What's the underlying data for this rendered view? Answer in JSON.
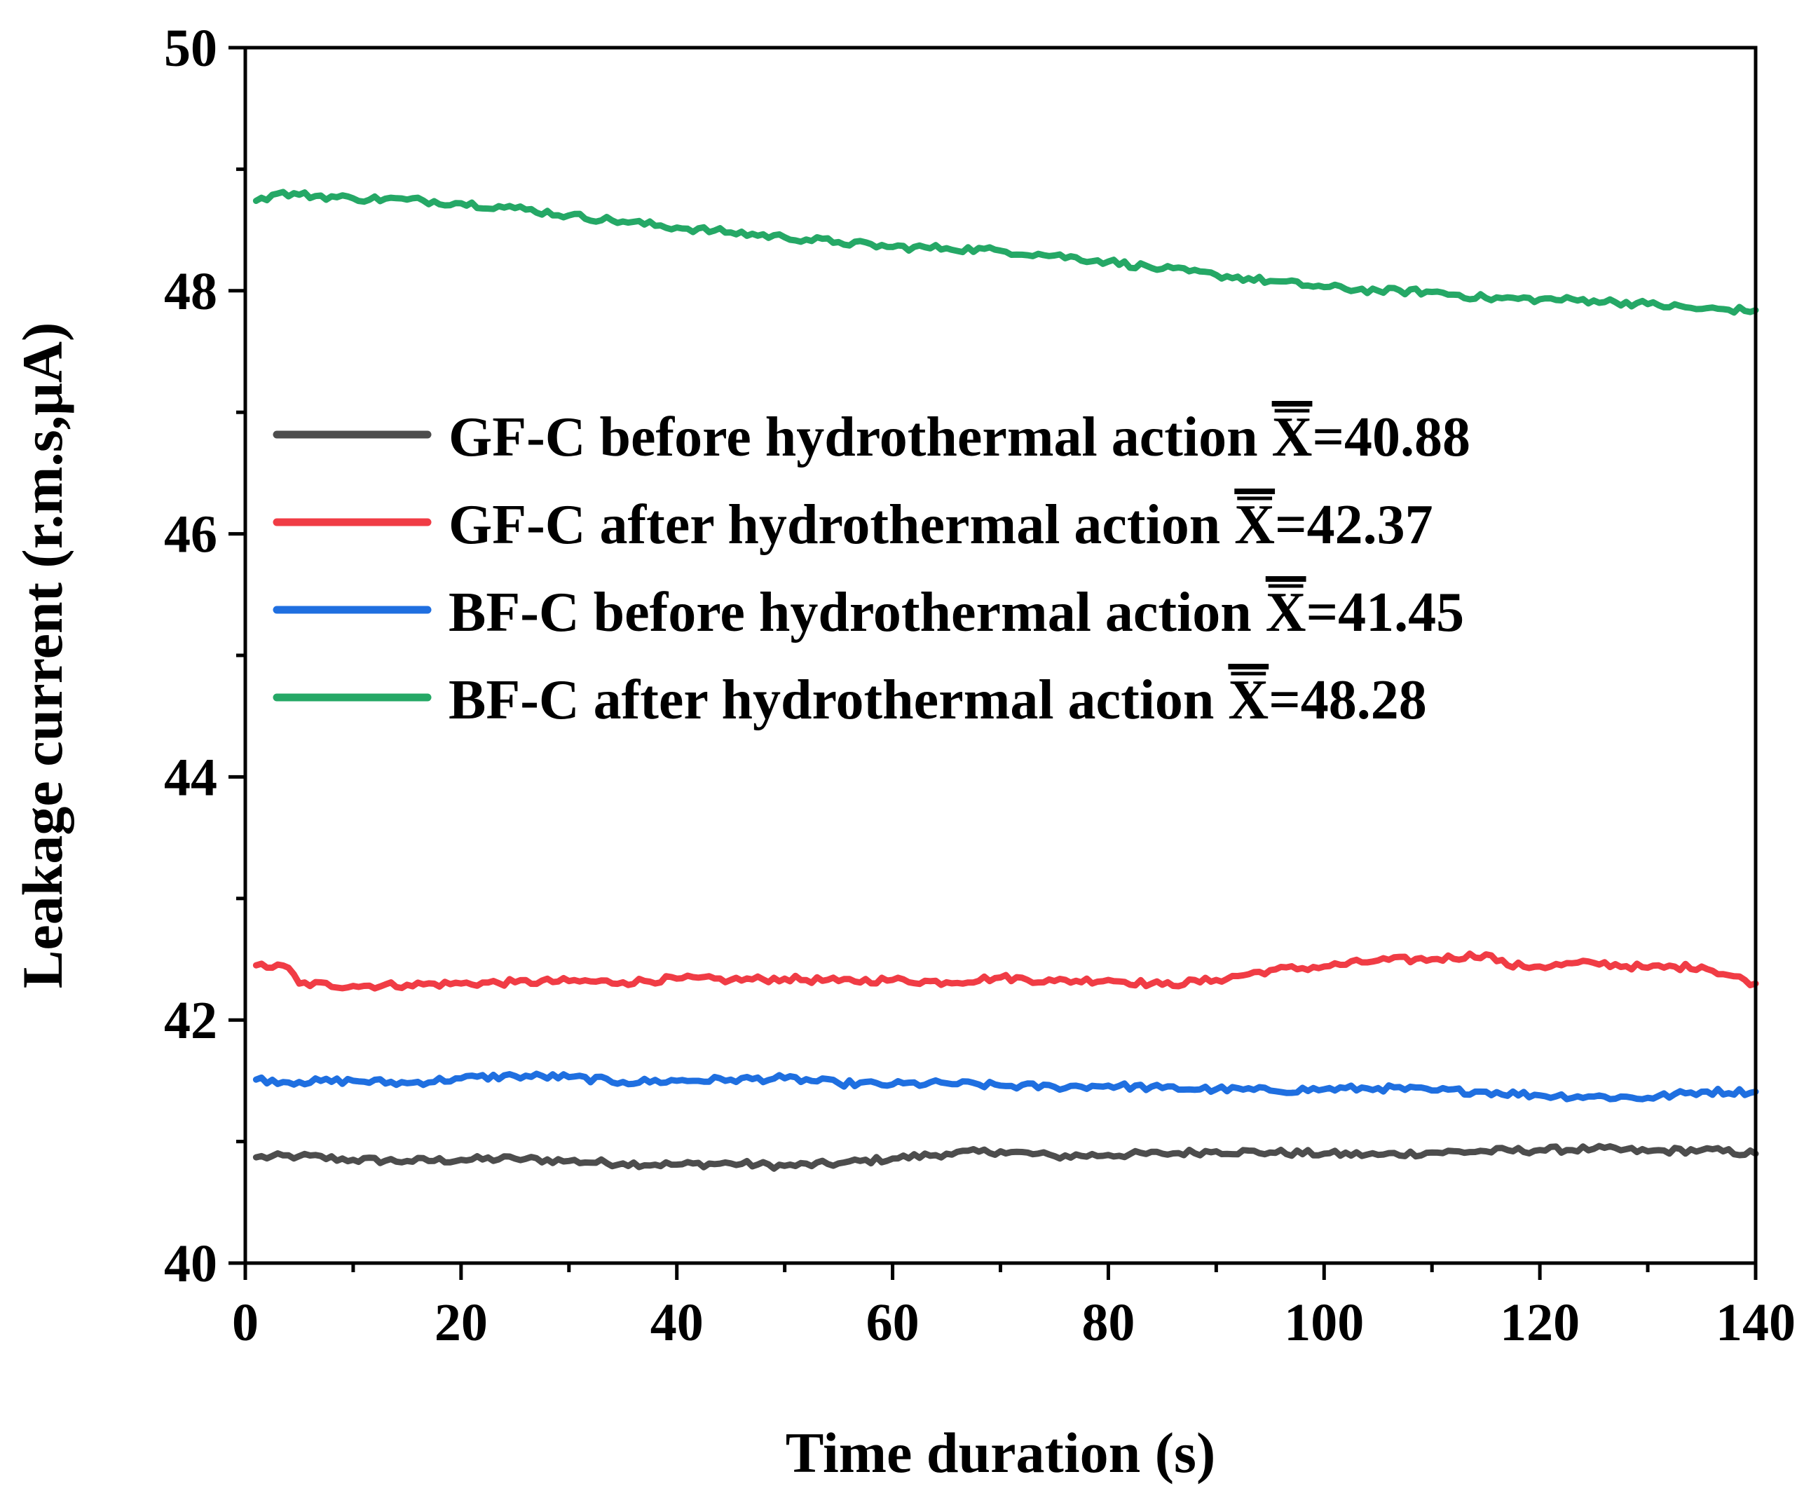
{
  "chart_data": {
    "type": "line",
    "title": "",
    "xlabel": "Time duration (s)",
    "ylabel": "Leakage current (r.m.s,μA)",
    "xlim": [
      0,
      140
    ],
    "ylim": [
      40,
      50
    ],
    "xticks": [
      "0",
      "20",
      "40",
      "60",
      "80",
      "100",
      "120",
      "140"
    ],
    "yticks": [
      "40",
      "42",
      "44",
      "46",
      "48",
      "50"
    ],
    "grid": false,
    "legend_position": "center-left",
    "series": [
      {
        "name": "GF-C before hydrothermal action",
        "mean_symbol": "X",
        "mean_value": "=40.88",
        "color": "#4d4d4d",
        "x": [
          1,
          5,
          10,
          15,
          20,
          25,
          30,
          35,
          40,
          45,
          50,
          55,
          60,
          65,
          70,
          75,
          80,
          85,
          90,
          95,
          100,
          105,
          110,
          115,
          120,
          125,
          130,
          135,
          140
        ],
        "values": [
          40.87,
          40.88,
          40.85,
          40.84,
          40.85,
          40.86,
          40.84,
          40.82,
          40.81,
          40.82,
          40.8,
          40.82,
          40.86,
          40.9,
          40.92,
          40.88,
          40.89,
          40.9,
          40.92,
          40.91,
          40.9,
          40.89,
          40.91,
          40.92,
          40.93,
          40.94,
          40.92,
          40.93,
          40.9
        ]
      },
      {
        "name": "GF-C after hydrothermal action",
        "mean_symbol": "X",
        "mean_value": "=42.37",
        "color": "#f03c45",
        "x": [
          1,
          4,
          5,
          10,
          15,
          20,
          25,
          30,
          35,
          40,
          45,
          50,
          55,
          60,
          65,
          70,
          75,
          80,
          85,
          90,
          95,
          100,
          105,
          110,
          115,
          117,
          120,
          125,
          130,
          135,
          140
        ],
        "values": [
          42.45,
          42.43,
          42.3,
          42.28,
          42.29,
          42.3,
          42.31,
          42.32,
          42.31,
          42.34,
          42.33,
          42.34,
          42.32,
          42.33,
          42.31,
          42.35,
          42.32,
          42.33,
          42.29,
          42.33,
          42.41,
          42.44,
          42.49,
          42.5,
          42.54,
          42.45,
          42.44,
          42.47,
          42.43,
          42.44,
          42.3
        ]
      },
      {
        "name": "BF-C before hydrothermal action",
        "mean_symbol": "X",
        "mean_value": "=41.45",
        "color": "#1f6fe0",
        "x": [
          1,
          5,
          10,
          15,
          20,
          25,
          30,
          35,
          40,
          45,
          50,
          55,
          60,
          65,
          70,
          75,
          80,
          85,
          90,
          95,
          100,
          105,
          110,
          115,
          120,
          125,
          130,
          135,
          140
        ],
        "values": [
          41.51,
          41.49,
          41.5,
          41.48,
          41.52,
          41.54,
          41.53,
          41.49,
          41.5,
          41.51,
          41.52,
          41.48,
          41.47,
          41.48,
          41.46,
          41.45,
          41.46,
          41.44,
          41.43,
          41.42,
          41.43,
          41.44,
          41.42,
          41.41,
          41.38,
          41.37,
          41.36,
          41.41,
          41.41
        ]
      },
      {
        "name": "BF-C after hydrothermal action",
        "mean_symbol": "X",
        "mean_value": "=48.28",
        "color": "#25a866",
        "x": [
          1,
          3,
          5,
          10,
          15,
          20,
          25,
          30,
          35,
          40,
          45,
          50,
          55,
          60,
          65,
          70,
          75,
          80,
          85,
          90,
          95,
          100,
          105,
          110,
          115,
          120,
          125,
          130,
          135,
          140
        ],
        "values": [
          48.74,
          48.8,
          48.79,
          48.76,
          48.75,
          48.72,
          48.68,
          48.62,
          48.57,
          48.52,
          48.48,
          48.44,
          48.4,
          48.36,
          48.35,
          48.33,
          48.29,
          48.24,
          48.18,
          48.13,
          48.08,
          48.03,
          48.0,
          47.99,
          47.94,
          47.93,
          47.92,
          47.89,
          47.85,
          47.84
        ]
      }
    ]
  }
}
